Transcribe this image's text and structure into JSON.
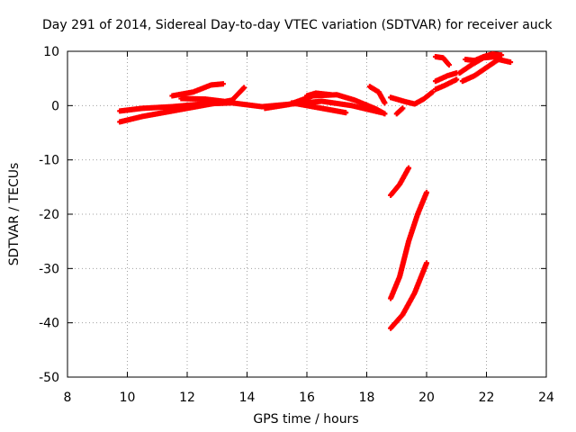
{
  "chart_data": {
    "type": "scatter",
    "title": "Day 291 of 2014, Sidereal Day-to-day VTEC variation (SDTVAR) for receiver auck",
    "xlabel": "GPS time / hours",
    "ylabel": "SDTVAR / TECUs",
    "xlim": [
      8,
      24
    ],
    "ylim": [
      -50,
      10
    ],
    "xticks": [
      8,
      10,
      12,
      14,
      16,
      18,
      20,
      22,
      24
    ],
    "yticks": [
      -50,
      -40,
      -30,
      -20,
      -10,
      0,
      10
    ],
    "grid": true,
    "marker": "+",
    "color": "#ff0000",
    "segments": [
      [
        [
          9.75,
          -3.0
        ],
        [
          10.5,
          -2.0
        ],
        [
          11.5,
          -1.0
        ],
        [
          12.5,
          0.0
        ],
        [
          13.5,
          1.0
        ],
        [
          13.9,
          3.3
        ]
      ],
      [
        [
          9.75,
          -1.0
        ],
        [
          10.5,
          -0.5
        ],
        [
          11.5,
          -0.2
        ],
        [
          12.5,
          0.3
        ],
        [
          13.5,
          0.5
        ],
        [
          14.5,
          -0.2
        ],
        [
          15.5,
          0.3
        ],
        [
          16.5,
          0.8
        ],
        [
          17.5,
          0.0
        ],
        [
          18.5,
          -1.3
        ]
      ],
      [
        [
          11.5,
          1.8
        ],
        [
          12.2,
          2.5
        ],
        [
          12.8,
          3.8
        ],
        [
          13.2,
          4.0
        ]
      ],
      [
        [
          11.8,
          1.3
        ],
        [
          12.6,
          1.2
        ],
        [
          13.2,
          0.8
        ]
      ],
      [
        [
          14.6,
          -0.5
        ],
        [
          15.4,
          0.2
        ],
        [
          16.2,
          1.8
        ],
        [
          17.0,
          2.0
        ],
        [
          17.6,
          1.0
        ],
        [
          18.3,
          -0.6
        ],
        [
          18.6,
          -1.5
        ]
      ],
      [
        [
          16.0,
          1.8
        ],
        [
          16.3,
          2.3
        ],
        [
          16.8,
          2.0
        ]
      ],
      [
        [
          15.5,
          0.5
        ],
        [
          16.5,
          -0.5
        ],
        [
          17.3,
          -1.3
        ]
      ],
      [
        [
          18.1,
          3.5
        ],
        [
          18.4,
          2.5
        ],
        [
          18.6,
          0.5
        ]
      ],
      [
        [
          18.8,
          1.5
        ],
        [
          19.3,
          0.7
        ],
        [
          19.6,
          0.3
        ],
        [
          19.9,
          1.2
        ],
        [
          20.2,
          2.5
        ]
      ],
      [
        [
          19.0,
          -1.5
        ],
        [
          19.2,
          -0.5
        ]
      ],
      [
        [
          20.3,
          9.0
        ],
        [
          20.55,
          8.8
        ],
        [
          20.75,
          7.5
        ]
      ],
      [
        [
          20.3,
          4.5
        ],
        [
          20.7,
          5.5
        ],
        [
          21.0,
          6.0
        ]
      ],
      [
        [
          20.3,
          3.0
        ],
        [
          20.6,
          3.7
        ],
        [
          21.0,
          4.8
        ]
      ],
      [
        [
          21.1,
          6.0
        ],
        [
          21.5,
          7.5
        ],
        [
          21.9,
          8.8
        ],
        [
          22.3,
          9.0
        ]
      ],
      [
        [
          21.2,
          4.5
        ],
        [
          21.6,
          5.5
        ],
        [
          22.0,
          7.0
        ],
        [
          22.4,
          8.5
        ],
        [
          22.8,
          8.0
        ]
      ],
      [
        [
          21.3,
          8.5
        ],
        [
          21.6,
          8.3
        ],
        [
          21.9,
          9.0
        ],
        [
          22.2,
          9.5
        ],
        [
          22.5,
          9.3
        ]
      ],
      [
        [
          18.8,
          -16.5
        ],
        [
          19.1,
          -14.5
        ],
        [
          19.4,
          -11.5
        ]
      ],
      [
        [
          18.8,
          -35.5
        ],
        [
          19.1,
          -31.5
        ],
        [
          19.4,
          -25.0
        ],
        [
          19.7,
          -20.0
        ],
        [
          20.0,
          -16.0
        ]
      ],
      [
        [
          18.8,
          -41.0
        ],
        [
          19.2,
          -38.5
        ],
        [
          19.6,
          -34.5
        ],
        [
          20.0,
          -29.0
        ]
      ]
    ]
  }
}
